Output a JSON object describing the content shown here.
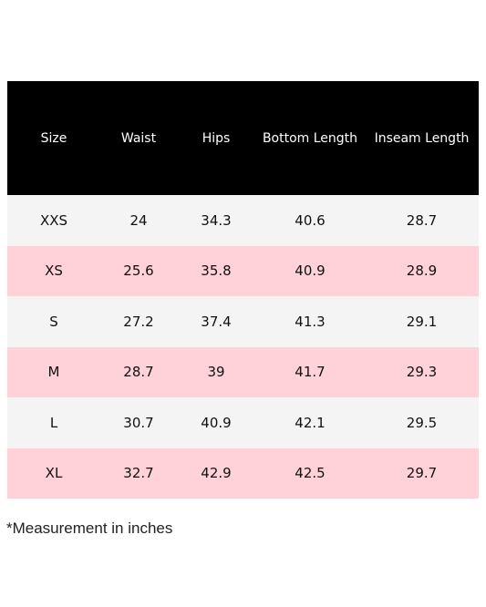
{
  "table": {
    "headers": [
      "Size",
      "Waist",
      "Hips",
      "Bottom Length",
      "Inseam Length"
    ],
    "rows": [
      [
        "XXS",
        "24",
        "34.3",
        "40.6",
        "28.7"
      ],
      [
        "XS",
        "25.6",
        "35.8",
        "40.9",
        "28.9"
      ],
      [
        "S",
        "27.2",
        "37.4",
        "41.3",
        "29.1"
      ],
      [
        "M",
        "28.7",
        "39",
        "41.7",
        "29.3"
      ],
      [
        "L",
        "30.7",
        "40.9",
        "42.1",
        "29.5"
      ],
      [
        "XL",
        "32.7",
        "42.9",
        "42.5",
        "29.7"
      ]
    ],
    "colors": {
      "header_background": "#000000",
      "header_text": "#ffffff",
      "row_light": "#f4f4f4",
      "row_pink": "#fed2d8"
    }
  },
  "footnote": "*Measurement in inches"
}
